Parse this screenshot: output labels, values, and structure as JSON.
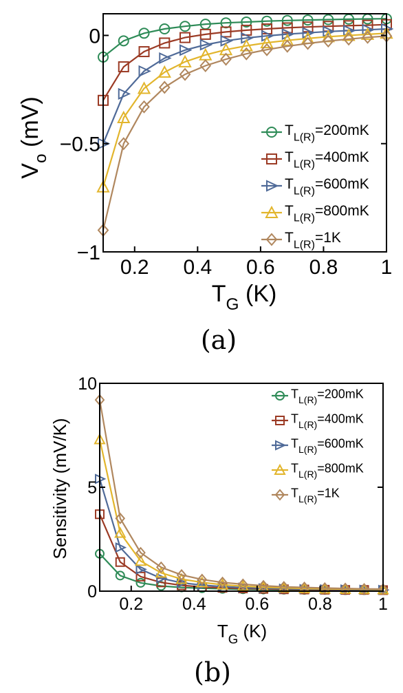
{
  "chart_data": [
    {
      "panel": "(a)",
      "type": "line",
      "xlabel": "T",
      "xlabel_sub": "G",
      "xlabel_unit": " (K)",
      "ylabel": "V",
      "ylabel_sub": "o",
      "ylabel_unit": " (mV)",
      "xlim": [
        0.1,
        1.0
      ],
      "ylim": [
        -1.0,
        0.1
      ],
      "xticks": [
        0.2,
        0.4,
        0.6,
        0.8,
        1.0
      ],
      "xtick_labels": [
        "0.2",
        "0.4",
        "0.6",
        "0.8",
        "1"
      ],
      "yticks": [
        0,
        -0.5,
        -1
      ],
      "ytick_labels": [
        "0",
        "−0.5",
        "−1"
      ],
      "legend_position": "right",
      "x": [
        0.1,
        0.165,
        0.23,
        0.295,
        0.36,
        0.425,
        0.49,
        0.555,
        0.62,
        0.685,
        0.75,
        0.815,
        0.88,
        0.94,
        1.0
      ],
      "series": [
        {
          "name": "T",
          "sub": "L(R)",
          "suffix": "=200mK",
          "color": "#2e8b57",
          "marker": "circle",
          "values": [
            -0.1,
            -0.025,
            0.01,
            0.03,
            0.042,
            0.052,
            0.058,
            0.062,
            0.066,
            0.069,
            0.071,
            0.073,
            0.075,
            0.076,
            0.077
          ]
        },
        {
          "name": "T",
          "sub": "L(R)",
          "suffix": "=400mK",
          "color": "#9b3a24",
          "marker": "square",
          "values": [
            -0.3,
            -0.145,
            -0.075,
            -0.035,
            -0.01,
            0.005,
            0.016,
            0.024,
            0.03,
            0.035,
            0.039,
            0.042,
            0.045,
            0.047,
            0.05
          ]
        },
        {
          "name": "T",
          "sub": "L(R)",
          "suffix": "=600mK",
          "color": "#4f6a98",
          "marker": "triangle-right",
          "values": [
            -0.5,
            -0.27,
            -0.165,
            -0.105,
            -0.068,
            -0.043,
            -0.025,
            -0.012,
            -0.002,
            0.006,
            0.012,
            0.018,
            0.022,
            0.026,
            0.03
          ]
        },
        {
          "name": "T",
          "sub": "L(R)",
          "suffix": "=800mK",
          "color": "#e2b52c",
          "marker": "triangle-up",
          "values": [
            -0.7,
            -0.38,
            -0.245,
            -0.17,
            -0.122,
            -0.09,
            -0.066,
            -0.048,
            -0.034,
            -0.023,
            -0.014,
            -0.006,
            0.0,
            0.005,
            0.01
          ]
        },
        {
          "name": "T",
          "sub": "L(R)",
          "suffix": "=1K",
          "color": "#b0875e",
          "marker": "diamond",
          "values": [
            -0.9,
            -0.5,
            -0.33,
            -0.24,
            -0.18,
            -0.14,
            -0.11,
            -0.085,
            -0.066,
            -0.05,
            -0.037,
            -0.026,
            -0.017,
            -0.009,
            -0.003
          ]
        }
      ]
    },
    {
      "panel": "(b)",
      "type": "line",
      "xlabel": "T",
      "xlabel_sub": "G",
      "xlabel_unit": " (K)",
      "ylabel": "Sensitivity (mV/K)",
      "xlim": [
        0.1,
        1.0
      ],
      "ylim": [
        0,
        10
      ],
      "xticks": [
        0.2,
        0.4,
        0.6,
        0.8,
        1.0
      ],
      "xtick_labels": [
        "0.2",
        "0.4",
        "0.6",
        "0.8",
        "1"
      ],
      "yticks": [
        0,
        5,
        10
      ],
      "ytick_labels": [
        "0",
        "5",
        "10"
      ],
      "legend_position": "top-right",
      "x": [
        0.1,
        0.165,
        0.23,
        0.295,
        0.36,
        0.425,
        0.49,
        0.555,
        0.62,
        0.685,
        0.75,
        0.815,
        0.88,
        0.94,
        1.0
      ],
      "series": [
        {
          "name": "T",
          "sub": "L(R)",
          "suffix": "=200mK",
          "color": "#2e8b57",
          "marker": "circle",
          "values": [
            1.8,
            0.75,
            0.4,
            0.25,
            0.18,
            0.14,
            0.11,
            0.09,
            0.08,
            0.07,
            0.06,
            0.06,
            0.05,
            0.05,
            0.05
          ]
        },
        {
          "name": "T",
          "sub": "L(R)",
          "suffix": "=400mK",
          "color": "#9b3a24",
          "marker": "square",
          "values": [
            3.7,
            1.4,
            0.7,
            0.42,
            0.28,
            0.2,
            0.16,
            0.13,
            0.11,
            0.09,
            0.08,
            0.07,
            0.06,
            0.06,
            0.05
          ]
        },
        {
          "name": "T",
          "sub": "L(R)",
          "suffix": "=600mK",
          "color": "#4f6a98",
          "marker": "triangle-right",
          "values": [
            5.4,
            2.1,
            1.05,
            0.62,
            0.4,
            0.29,
            0.22,
            0.17,
            0.14,
            0.12,
            0.1,
            0.09,
            0.08,
            0.07,
            0.06
          ]
        },
        {
          "name": "T",
          "sub": "L(R)",
          "suffix": "=800mK",
          "color": "#e2b52c",
          "marker": "triangle-up",
          "values": [
            7.3,
            2.8,
            1.45,
            0.88,
            0.58,
            0.42,
            0.31,
            0.24,
            0.19,
            0.16,
            0.13,
            0.11,
            0.1,
            0.09,
            0.08
          ]
        },
        {
          "name": "T",
          "sub": "L(R)",
          "suffix": "=1K",
          "color": "#b0875e",
          "marker": "diamond",
          "values": [
            9.2,
            3.5,
            1.85,
            1.15,
            0.78,
            0.56,
            0.42,
            0.33,
            0.26,
            0.21,
            0.18,
            0.15,
            0.13,
            0.11,
            0.1
          ]
        }
      ]
    }
  ]
}
